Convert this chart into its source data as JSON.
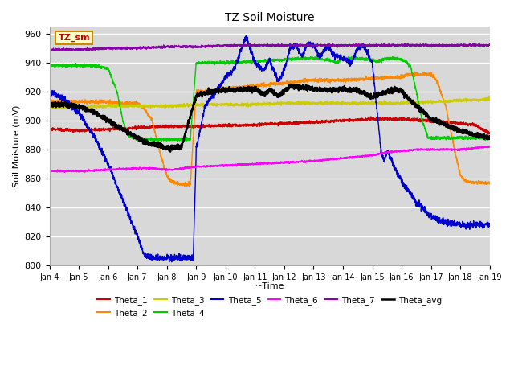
{
  "title": "TZ Soil Moisture",
  "xlabel": "~Time",
  "ylabel": "Soil Moisture (mV)",
  "ylim": [
    800,
    965
  ],
  "yticks": [
    800,
    820,
    840,
    860,
    880,
    900,
    920,
    940,
    960
  ],
  "xtick_labels": [
    "Jan 4",
    "Jan 5",
    "Jan 6",
    "Jan 7",
    "Jan 8",
    "Jan 9",
    "Jan 10",
    "Jan 11",
    "Jan 12",
    "Jan 13",
    "Jan 14",
    "Jan 15",
    "Jan 16",
    "Jan 17",
    "Jan 18",
    "Jan 19"
  ],
  "legend_label": "TZ_sm",
  "bg_color": "#d8d8d8",
  "series_colors": {
    "Theta_1": "#cc0000",
    "Theta_2": "#ff8800",
    "Theta_3": "#cccc00",
    "Theta_4": "#00cc00",
    "Theta_5": "#0000cc",
    "Theta_6": "#ff00ff",
    "Theta_7": "#8800aa",
    "Theta_avg": "#000000"
  }
}
